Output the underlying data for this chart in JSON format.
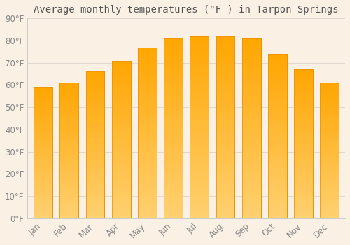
{
  "title": "Average monthly temperatures (°F ) in Tarpon Springs",
  "months": [
    "Jan",
    "Feb",
    "Mar",
    "Apr",
    "May",
    "Jun",
    "Jul",
    "Aug",
    "Sep",
    "Oct",
    "Nov",
    "Dec"
  ],
  "values": [
    59,
    61,
    66,
    71,
    77,
    81,
    82,
    82,
    81,
    74,
    67,
    61
  ],
  "bar_color_top": "#FFA500",
  "bar_color_bottom": "#FFD080",
  "bar_edge_color": "#E89000",
  "background_color_top": "#F5E8D8",
  "background_color_bottom": "#FAF0E6",
  "grid_color": "#E0D8D0",
  "text_color": "#888888",
  "title_color": "#555555",
  "ylim": [
    0,
    90
  ],
  "yticks": [
    0,
    10,
    20,
    30,
    40,
    50,
    60,
    70,
    80,
    90
  ],
  "ytick_labels": [
    "0°F",
    "10°F",
    "20°F",
    "30°F",
    "40°F",
    "50°F",
    "60°F",
    "70°F",
    "80°F",
    "90°F"
  ],
  "title_fontsize": 10,
  "tick_fontsize": 8.5,
  "figsize": [
    5.0,
    3.5
  ],
  "dpi": 100
}
